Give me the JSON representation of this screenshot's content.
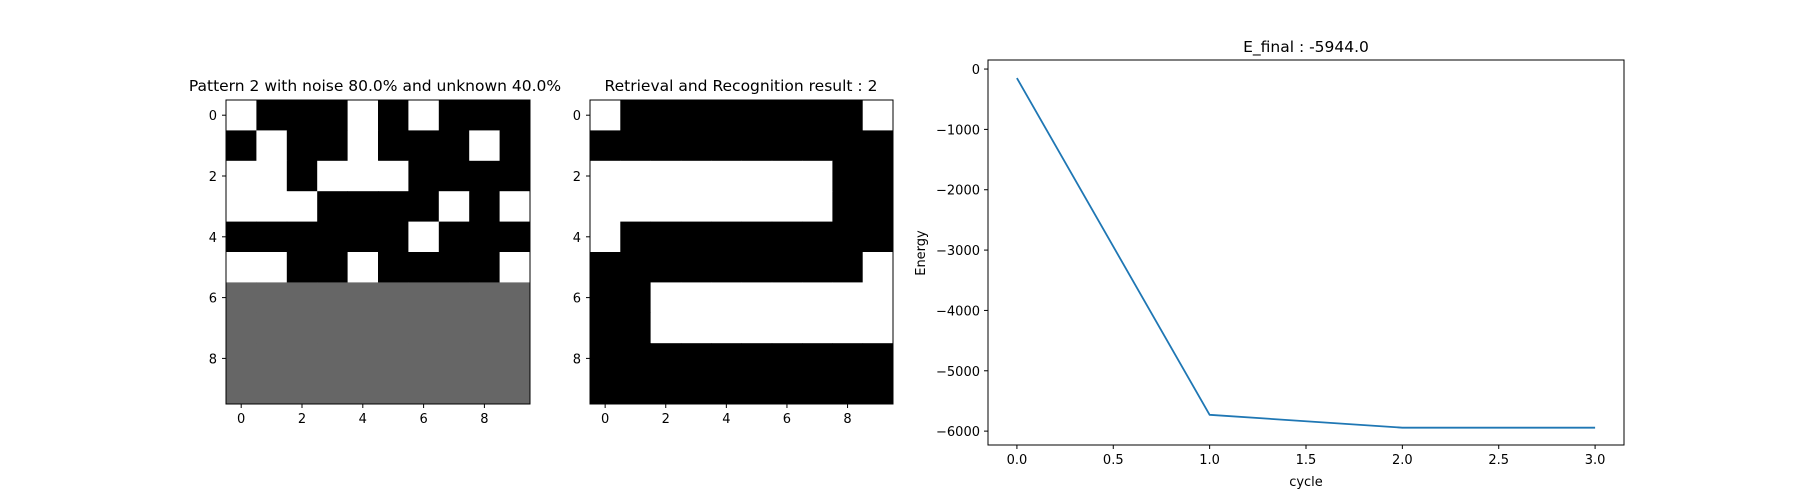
{
  "chart_data": [
    {
      "type": "heatmap",
      "title": "Pattern 2 with noise 80.0% and unknown 40.0%",
      "colormap": "gray",
      "legend": "none",
      "grid": false,
      "value_colors": {
        "1": "#ffffff",
        "-1": "#000000",
        "0": "#666666"
      },
      "x_ticks": [
        0,
        2,
        4,
        6,
        8
      ],
      "y_ticks": [
        0,
        2,
        4,
        6,
        8
      ],
      "values": [
        [
          1,
          -1,
          -1,
          -1,
          1,
          -1,
          1,
          -1,
          -1,
          -1
        ],
        [
          -1,
          1,
          -1,
          -1,
          1,
          -1,
          -1,
          -1,
          1,
          -1
        ],
        [
          1,
          1,
          -1,
          1,
          1,
          1,
          -1,
          -1,
          -1,
          -1
        ],
        [
          1,
          1,
          1,
          -1,
          -1,
          -1,
          -1,
          1,
          -1,
          1
        ],
        [
          -1,
          -1,
          -1,
          -1,
          -1,
          -1,
          1,
          -1,
          -1,
          -1
        ],
        [
          1,
          1,
          -1,
          -1,
          1,
          -1,
          -1,
          -1,
          -1,
          1
        ],
        [
          0,
          0,
          0,
          0,
          0,
          0,
          0,
          0,
          0,
          0
        ],
        [
          0,
          0,
          0,
          0,
          0,
          0,
          0,
          0,
          0,
          0
        ],
        [
          0,
          0,
          0,
          0,
          0,
          0,
          0,
          0,
          0,
          0
        ],
        [
          0,
          0,
          0,
          0,
          0,
          0,
          0,
          0,
          0,
          0
        ]
      ]
    },
    {
      "type": "heatmap",
      "title": "Retrieval and Recognition result : 2",
      "colormap": "gray",
      "legend": "none",
      "grid": false,
      "value_colors": {
        "1": "#ffffff",
        "-1": "#000000"
      },
      "x_ticks": [
        0,
        2,
        4,
        6,
        8
      ],
      "y_ticks": [
        0,
        2,
        4,
        6,
        8
      ],
      "values": [
        [
          1,
          -1,
          -1,
          -1,
          -1,
          -1,
          -1,
          -1,
          -1,
          1
        ],
        [
          -1,
          -1,
          -1,
          -1,
          -1,
          -1,
          -1,
          -1,
          -1,
          -1
        ],
        [
          1,
          1,
          1,
          1,
          1,
          1,
          1,
          1,
          -1,
          -1
        ],
        [
          1,
          1,
          1,
          1,
          1,
          1,
          1,
          1,
          -1,
          -1
        ],
        [
          1,
          -1,
          -1,
          -1,
          -1,
          -1,
          -1,
          -1,
          -1,
          -1
        ],
        [
          -1,
          -1,
          -1,
          -1,
          -1,
          -1,
          -1,
          -1,
          -1,
          1
        ],
        [
          -1,
          -1,
          1,
          1,
          1,
          1,
          1,
          1,
          1,
          1
        ],
        [
          -1,
          -1,
          1,
          1,
          1,
          1,
          1,
          1,
          1,
          1
        ],
        [
          -1,
          -1,
          -1,
          -1,
          -1,
          -1,
          -1,
          -1,
          -1,
          -1
        ],
        [
          -1,
          -1,
          -1,
          -1,
          -1,
          -1,
          -1,
          -1,
          -1,
          -1
        ]
      ]
    },
    {
      "type": "line",
      "title": "E_final : -5944.0",
      "xlabel": "cycle",
      "ylabel": "Energy",
      "grid": false,
      "legend": "none",
      "xlim": [
        -0.15,
        3.15
      ],
      "ylim": [
        -6230,
        150
      ],
      "x_ticks": [
        0.0,
        0.5,
        1.0,
        1.5,
        2.0,
        2.5,
        3.0
      ],
      "x_tick_labels": [
        "0.0",
        "0.5",
        "1.0",
        "1.5",
        "2.0",
        "2.5",
        "3.0"
      ],
      "y_ticks": [
        0,
        -1000,
        -2000,
        -3000,
        -4000,
        -5000,
        -6000
      ],
      "y_tick_labels": [
        "0",
        "−1000",
        "−2000",
        "−3000",
        "−4000",
        "−5000",
        "−6000"
      ],
      "series": [
        {
          "color": "#1f77b4",
          "x": [
            0,
            1,
            2,
            3
          ],
          "y": [
            -150,
            -5730,
            -5944,
            -5944
          ]
        }
      ]
    }
  ]
}
